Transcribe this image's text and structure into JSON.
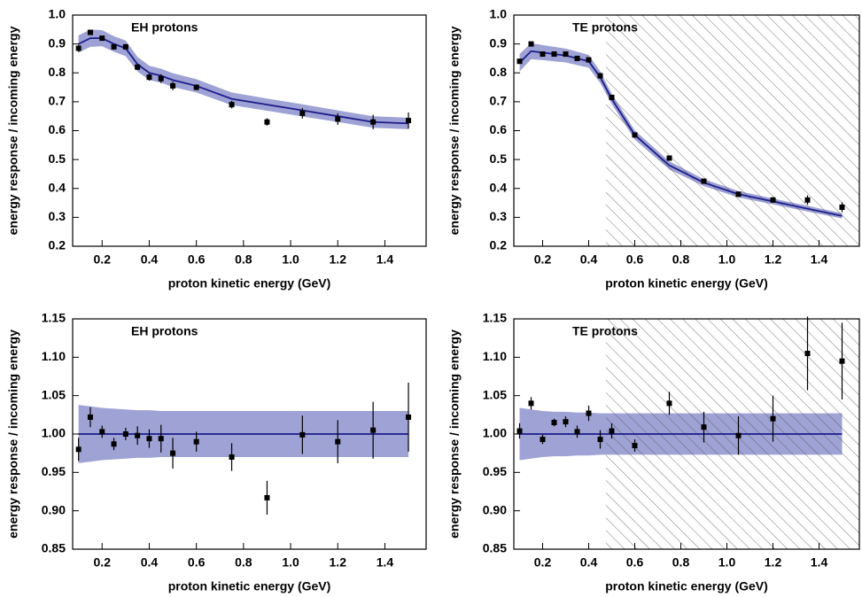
{
  "chart_data": [
    {
      "type": "errorbar-band",
      "title": "EH protons",
      "x_label": "proton kinetic energy (GeV)",
      "y_label": "energy response / incoming energy",
      "x": [
        0.1,
        0.15,
        0.2,
        0.25,
        0.3,
        0.35,
        0.4,
        0.45,
        0.5,
        0.6,
        0.75,
        0.9,
        1.05,
        1.2,
        1.35,
        1.5
      ],
      "series": [
        {
          "color": "#000000",
          "values": [
            0.885,
            0.94,
            0.92,
            0.89,
            0.89,
            0.82,
            0.785,
            0.78,
            0.755,
            0.75,
            0.69,
            0.63,
            0.66,
            0.64,
            0.63,
            0.635
          ],
          "errors": [
            0.012,
            0.008,
            0.008,
            0.01,
            0.01,
            0.01,
            0.012,
            0.015,
            0.015,
            0.01,
            0.013,
            0.013,
            0.018,
            0.02,
            0.025,
            0.028
          ]
        }
      ],
      "model": {
        "color": "#1c1c8a",
        "band_color": "#9ea2d4",
        "values": [
          0.9,
          0.92,
          0.92,
          0.9,
          0.885,
          0.83,
          0.8,
          0.79,
          0.775,
          0.755,
          0.71,
          0.69,
          0.67,
          0.65,
          0.63,
          0.625
        ],
        "band": [
          0.03,
          0.03,
          0.028,
          0.027,
          0.027,
          0.025,
          0.025,
          0.024,
          0.024,
          0.023,
          0.022,
          0.021,
          0.021,
          0.02,
          0.02,
          0.02
        ]
      },
      "xlim": [
        0.075,
        1.575
      ],
      "ylim": [
        0.2,
        1.0
      ],
      "xticks": [
        0.2,
        0.4,
        0.6,
        0.8,
        {
          "value": 1,
          "label": "1.0"
        },
        1.2,
        1.4
      ],
      "yticks": [
        0.2,
        0.3,
        0.4,
        0.5,
        0.6,
        0.7,
        0.8,
        0.9,
        {
          "value": 1,
          "label": "1.0"
        }
      ]
    },
    {
      "type": "errorbar-band",
      "title": "TE protons",
      "x_label": "proton kinetic energy (GeV)",
      "y_label": "energy response / incoming energy",
      "x": [
        0.1,
        0.15,
        0.2,
        0.25,
        0.3,
        0.35,
        0.4,
        0.45,
        0.5,
        0.6,
        0.75,
        0.9,
        1.05,
        1.2,
        1.35,
        1.5
      ],
      "series": [
        {
          "color": "#000000",
          "values": [
            0.84,
            0.9,
            0.865,
            0.865,
            0.865,
            0.85,
            0.845,
            0.79,
            0.715,
            0.585,
            0.505,
            0.425,
            0.38,
            0.36,
            0.36,
            0.335
          ],
          "errors": [
            0.008,
            0.007,
            0.005,
            0.005,
            0.006,
            0.007,
            0.008,
            0.01,
            0.007,
            0.006,
            0.008,
            0.008,
            0.009,
            0.01,
            0.016,
            0.017
          ]
        }
      ],
      "model": {
        "color": "#1c1c8a",
        "band_color": "#9ea2d4",
        "values": [
          0.835,
          0.875,
          0.87,
          0.865,
          0.86,
          0.85,
          0.84,
          0.785,
          0.71,
          0.585,
          0.48,
          0.42,
          0.38,
          0.355,
          0.33,
          0.305
        ],
        "band": [
          0.03,
          0.028,
          0.026,
          0.025,
          0.024,
          0.023,
          0.022,
          0.02,
          0.018,
          0.016,
          0.014,
          0.012,
          0.011,
          0.01,
          0.01,
          0.009
        ]
      },
      "hatch_start": 0.475,
      "xlim": [
        0.075,
        1.575
      ],
      "ylim": [
        0.2,
        1.0
      ],
      "xticks": [
        0.2,
        0.4,
        0.6,
        0.8,
        {
          "value": 1,
          "label": "1.0"
        },
        1.2,
        1.4
      ],
      "yticks": [
        0.2,
        0.3,
        0.4,
        0.5,
        0.6,
        0.7,
        0.8,
        0.9,
        {
          "value": 1,
          "label": "1.0"
        }
      ]
    },
    {
      "type": "errorbar-band",
      "title": "EH protons",
      "x_label": "proton kinetic energy (GeV)",
      "y_label": "energy response / incoming energy",
      "x": [
        0.1,
        0.15,
        0.2,
        0.25,
        0.3,
        0.35,
        0.4,
        0.45,
        0.5,
        0.6,
        0.75,
        0.9,
        1.05,
        1.2,
        1.35,
        1.5
      ],
      "series": [
        {
          "color": "#000000",
          "values": [
            0.98,
            1.022,
            1.003,
            0.987,
            1.0,
            0.998,
            0.994,
            0.994,
            0.975,
            0.99,
            0.97,
            0.917,
            0.999,
            0.99,
            1.005,
            1.022
          ],
          "errors": [
            0.015,
            0.013,
            0.008,
            0.008,
            0.008,
            0.012,
            0.012,
            0.018,
            0.02,
            0.013,
            0.018,
            0.022,
            0.025,
            0.028,
            0.037,
            0.045
          ]
        }
      ],
      "model": {
        "color": "#1c1c8a",
        "band_color": "#9ea2d4",
        "values": [
          1,
          1,
          1,
          1,
          1,
          1,
          1,
          1,
          1,
          1,
          1,
          1,
          1,
          1,
          1,
          1
        ],
        "band": [
          0.038,
          0.036,
          0.034,
          0.033,
          0.032,
          0.031,
          0.031,
          0.03,
          0.03,
          0.03,
          0.03,
          0.03,
          0.03,
          0.03,
          0.03,
          0.03
        ]
      },
      "xlim": [
        0.075,
        1.575
      ],
      "ylim": [
        0.85,
        1.15
      ],
      "xticks": [
        0.2,
        0.4,
        0.6,
        0.8,
        {
          "value": 1,
          "label": "1.0"
        },
        1.2,
        1.4
      ],
      "yticks": [
        0.85,
        {
          "value": 0.9,
          "label": "0.90"
        },
        0.95,
        {
          "value": 1,
          "label": "1.00"
        },
        1.05,
        {
          "value": 1.1,
          "label": "1.10"
        },
        1.15
      ]
    },
    {
      "type": "errorbar-band",
      "title": "TE protons",
      "x_label": "proton kinetic energy (GeV)",
      "y_label": "energy response / incoming energy",
      "x": [
        0.1,
        0.15,
        0.2,
        0.25,
        0.3,
        0.35,
        0.4,
        0.45,
        0.5,
        0.6,
        0.75,
        0.9,
        1.05,
        1.2,
        1.35,
        1.5
      ],
      "series": [
        {
          "color": "#000000",
          "values": [
            1.004,
            1.04,
            0.993,
            1.015,
            1.016,
            1.003,
            1.027,
            0.993,
            1.004,
            0.985,
            1.04,
            1.009,
            0.998,
            1.02,
            1.105,
            1.095
          ],
          "errors": [
            0.01,
            0.008,
            0.006,
            0.005,
            0.007,
            0.008,
            0.01,
            0.012,
            0.01,
            0.008,
            0.015,
            0.02,
            0.025,
            0.03,
            0.048,
            0.05
          ]
        }
      ],
      "model": {
        "color": "#1c1c8a",
        "band_color": "#9ea2d4",
        "values": [
          1,
          1,
          1,
          1,
          1,
          1,
          1,
          1,
          1,
          1,
          1,
          1,
          1,
          1,
          1,
          1
        ],
        "band": [
          0.034,
          0.032,
          0.03,
          0.029,
          0.029,
          0.028,
          0.028,
          0.027,
          0.027,
          0.027,
          0.027,
          0.027,
          0.027,
          0.027,
          0.027,
          0.027
        ]
      },
      "hatch_start": 0.475,
      "xlim": [
        0.075,
        1.575
      ],
      "ylim": [
        0.85,
        1.15
      ],
      "xticks": [
        0.2,
        0.4,
        0.6,
        0.8,
        {
          "value": 1,
          "label": "1.0"
        },
        1.2,
        1.4
      ],
      "yticks": [
        0.85,
        {
          "value": 0.9,
          "label": "0.90"
        },
        0.95,
        {
          "value": 1,
          "label": "1.00"
        },
        1.05,
        {
          "value": 1.1,
          "label": "1.10"
        },
        1.15
      ]
    }
  ]
}
